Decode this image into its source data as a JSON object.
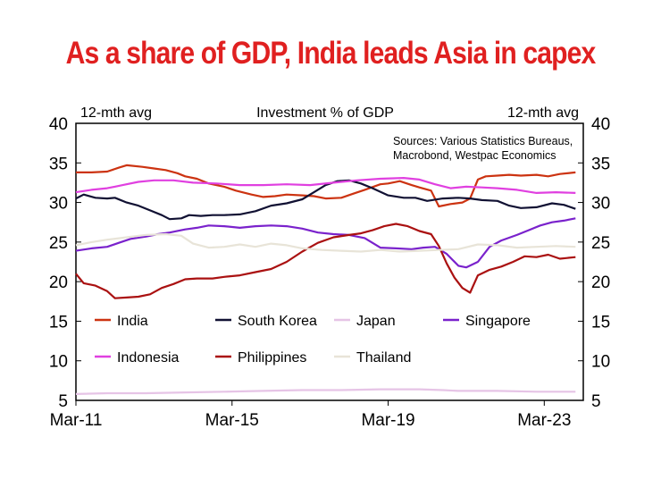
{
  "headline": "As a share of GDP, India leads Asia in capex",
  "chart_data": {
    "type": "line",
    "title": "Investment % of GDP",
    "left_axis_label": "12-mth avg",
    "right_axis_label": "12-mth avg",
    "sources_line1": "Sources: Various Statistics Bureaus,",
    "sources_line2": "Macrobond, Westpac Economics",
    "ylim": [
      5,
      40
    ],
    "yticks": [
      5,
      10,
      15,
      20,
      25,
      30,
      35,
      40
    ],
    "xlim": [
      2011.2,
      2024.2
    ],
    "xticks": [
      {
        "label": "Mar-11",
        "value": 2011.2
      },
      {
        "label": "Mar-15",
        "value": 2015.2
      },
      {
        "label": "Mar-19",
        "value": 2019.2
      },
      {
        "label": "Mar-23",
        "value": 2023.2
      }
    ],
    "grid": false,
    "legend": "inside-bottom",
    "series": [
      {
        "name": "India",
        "color": "#cc3311",
        "points": [
          [
            2011.2,
            33.8
          ],
          [
            2011.6,
            33.8
          ],
          [
            2012.0,
            33.9
          ],
          [
            2012.3,
            34.4
          ],
          [
            2012.5,
            34.7
          ],
          [
            2012.9,
            34.5
          ],
          [
            2013.2,
            34.3
          ],
          [
            2013.5,
            34.1
          ],
          [
            2013.8,
            33.7
          ],
          [
            2014.0,
            33.3
          ],
          [
            2014.3,
            33.0
          ],
          [
            2014.6,
            32.4
          ],
          [
            2015.0,
            32.0
          ],
          [
            2015.3,
            31.5
          ],
          [
            2015.7,
            31.0
          ],
          [
            2016.0,
            30.7
          ],
          [
            2016.3,
            30.8
          ],
          [
            2016.6,
            31.0
          ],
          [
            2017.0,
            30.9
          ],
          [
            2017.3,
            30.8
          ],
          [
            2017.6,
            30.5
          ],
          [
            2018.0,
            30.6
          ],
          [
            2018.3,
            31.1
          ],
          [
            2018.6,
            31.6
          ],
          [
            2019.0,
            32.3
          ],
          [
            2019.2,
            32.4
          ],
          [
            2019.5,
            32.7
          ],
          [
            2019.8,
            32.2
          ],
          [
            2020.0,
            31.9
          ],
          [
            2020.3,
            31.5
          ],
          [
            2020.5,
            29.5
          ],
          [
            2020.8,
            29.8
          ],
          [
            2021.1,
            30.0
          ],
          [
            2021.3,
            30.5
          ],
          [
            2021.5,
            32.9
          ],
          [
            2021.7,
            33.3
          ],
          [
            2022.0,
            33.4
          ],
          [
            2022.3,
            33.5
          ],
          [
            2022.6,
            33.4
          ],
          [
            2023.0,
            33.5
          ],
          [
            2023.3,
            33.3
          ],
          [
            2023.6,
            33.6
          ],
          [
            2024.0,
            33.8
          ]
        ]
      },
      {
        "name": "South Korea",
        "color": "#111133",
        "points": [
          [
            2011.2,
            30.5
          ],
          [
            2011.4,
            31.0
          ],
          [
            2011.7,
            30.6
          ],
          [
            2012.0,
            30.5
          ],
          [
            2012.2,
            30.6
          ],
          [
            2012.5,
            30.0
          ],
          [
            2012.8,
            29.6
          ],
          [
            2013.1,
            29.0
          ],
          [
            2013.4,
            28.4
          ],
          [
            2013.6,
            27.9
          ],
          [
            2013.9,
            28.0
          ],
          [
            2014.1,
            28.4
          ],
          [
            2014.4,
            28.3
          ],
          [
            2014.7,
            28.4
          ],
          [
            2015.0,
            28.4
          ],
          [
            2015.4,
            28.5
          ],
          [
            2015.8,
            28.9
          ],
          [
            2016.2,
            29.6
          ],
          [
            2016.6,
            29.9
          ],
          [
            2017.0,
            30.4
          ],
          [
            2017.3,
            31.3
          ],
          [
            2017.6,
            32.2
          ],
          [
            2017.9,
            32.7
          ],
          [
            2018.2,
            32.8
          ],
          [
            2018.5,
            32.4
          ],
          [
            2018.8,
            31.8
          ],
          [
            2019.2,
            30.9
          ],
          [
            2019.6,
            30.6
          ],
          [
            2019.9,
            30.6
          ],
          [
            2020.2,
            30.2
          ],
          [
            2020.6,
            30.5
          ],
          [
            2021.0,
            30.6
          ],
          [
            2021.3,
            30.5
          ],
          [
            2021.6,
            30.3
          ],
          [
            2022.0,
            30.2
          ],
          [
            2022.3,
            29.6
          ],
          [
            2022.6,
            29.3
          ],
          [
            2023.0,
            29.4
          ],
          [
            2023.4,
            29.9
          ],
          [
            2023.7,
            29.7
          ],
          [
            2024.0,
            29.2
          ]
        ]
      },
      {
        "name": "Japan",
        "color": "#e6c4e6",
        "points": [
          [
            2011.2,
            5.8
          ],
          [
            2012.0,
            5.9
          ],
          [
            2013.0,
            5.9
          ],
          [
            2014.0,
            6.0
          ],
          [
            2015.0,
            6.1
          ],
          [
            2016.0,
            6.2
          ],
          [
            2017.0,
            6.3
          ],
          [
            2018.0,
            6.3
          ],
          [
            2019.0,
            6.4
          ],
          [
            2020.0,
            6.4
          ],
          [
            2020.6,
            6.3
          ],
          [
            2021.0,
            6.2
          ],
          [
            2022.0,
            6.2
          ],
          [
            2023.0,
            6.1
          ],
          [
            2024.0,
            6.1
          ]
        ]
      },
      {
        "name": "Singapore",
        "color": "#7a22cc",
        "points": [
          [
            2011.2,
            23.9
          ],
          [
            2011.6,
            24.2
          ],
          [
            2012.0,
            24.4
          ],
          [
            2012.3,
            24.9
          ],
          [
            2012.6,
            25.4
          ],
          [
            2013.0,
            25.7
          ],
          [
            2013.3,
            26.0
          ],
          [
            2013.6,
            26.2
          ],
          [
            2014.0,
            26.6
          ],
          [
            2014.3,
            26.8
          ],
          [
            2014.6,
            27.1
          ],
          [
            2015.0,
            27.0
          ],
          [
            2015.4,
            26.8
          ],
          [
            2015.8,
            27.0
          ],
          [
            2016.2,
            27.1
          ],
          [
            2016.6,
            27.0
          ],
          [
            2017.0,
            26.7
          ],
          [
            2017.4,
            26.2
          ],
          [
            2017.8,
            26.0
          ],
          [
            2018.2,
            25.9
          ],
          [
            2018.6,
            25.5
          ],
          [
            2019.0,
            24.3
          ],
          [
            2019.4,
            24.2
          ],
          [
            2019.8,
            24.1
          ],
          [
            2020.1,
            24.3
          ],
          [
            2020.4,
            24.4
          ],
          [
            2020.7,
            23.5
          ],
          [
            2021.0,
            22.0
          ],
          [
            2021.2,
            21.8
          ],
          [
            2021.5,
            22.5
          ],
          [
            2021.8,
            24.4
          ],
          [
            2022.1,
            25.2
          ],
          [
            2022.5,
            25.9
          ],
          [
            2022.8,
            26.5
          ],
          [
            2023.1,
            27.1
          ],
          [
            2023.4,
            27.5
          ],
          [
            2023.7,
            27.7
          ],
          [
            2024.0,
            28.0
          ]
        ]
      },
      {
        "name": "Indonesia",
        "color": "#e040e0",
        "points": [
          [
            2011.2,
            31.3
          ],
          [
            2011.6,
            31.6
          ],
          [
            2012.0,
            31.8
          ],
          [
            2012.4,
            32.2
          ],
          [
            2012.8,
            32.6
          ],
          [
            2013.2,
            32.8
          ],
          [
            2013.7,
            32.8
          ],
          [
            2014.2,
            32.5
          ],
          [
            2014.8,
            32.4
          ],
          [
            2015.4,
            32.2
          ],
          [
            2016.0,
            32.2
          ],
          [
            2016.6,
            32.3
          ],
          [
            2017.2,
            32.2
          ],
          [
            2017.8,
            32.5
          ],
          [
            2018.4,
            32.8
          ],
          [
            2019.0,
            33.0
          ],
          [
            2019.6,
            33.1
          ],
          [
            2020.0,
            32.9
          ],
          [
            2020.4,
            32.3
          ],
          [
            2020.8,
            31.8
          ],
          [
            2021.2,
            32.0
          ],
          [
            2021.6,
            31.9
          ],
          [
            2022.0,
            31.8
          ],
          [
            2022.5,
            31.6
          ],
          [
            2023.0,
            31.2
          ],
          [
            2023.5,
            31.3
          ],
          [
            2024.0,
            31.2
          ]
        ]
      },
      {
        "name": "Philippines",
        "color": "#aa1111",
        "points": [
          [
            2011.2,
            21.0
          ],
          [
            2011.4,
            19.8
          ],
          [
            2011.7,
            19.5
          ],
          [
            2012.0,
            18.8
          ],
          [
            2012.2,
            17.9
          ],
          [
            2012.5,
            18.0
          ],
          [
            2012.8,
            18.1
          ],
          [
            2013.1,
            18.4
          ],
          [
            2013.4,
            19.2
          ],
          [
            2013.7,
            19.7
          ],
          [
            2014.0,
            20.3
          ],
          [
            2014.3,
            20.4
          ],
          [
            2014.7,
            20.4
          ],
          [
            2015.0,
            20.6
          ],
          [
            2015.4,
            20.8
          ],
          [
            2015.8,
            21.2
          ],
          [
            2016.2,
            21.6
          ],
          [
            2016.6,
            22.5
          ],
          [
            2017.0,
            23.8
          ],
          [
            2017.4,
            24.9
          ],
          [
            2017.8,
            25.6
          ],
          [
            2018.2,
            25.9
          ],
          [
            2018.5,
            26.1
          ],
          [
            2018.8,
            26.5
          ],
          [
            2019.1,
            27.0
          ],
          [
            2019.4,
            27.3
          ],
          [
            2019.7,
            27.0
          ],
          [
            2020.0,
            26.4
          ],
          [
            2020.3,
            26.0
          ],
          [
            2020.5,
            24.5
          ],
          [
            2020.7,
            22.3
          ],
          [
            2020.9,
            20.5
          ],
          [
            2021.1,
            19.2
          ],
          [
            2021.3,
            18.6
          ],
          [
            2021.5,
            20.8
          ],
          [
            2021.8,
            21.5
          ],
          [
            2022.1,
            21.9
          ],
          [
            2022.4,
            22.5
          ],
          [
            2022.7,
            23.2
          ],
          [
            2023.0,
            23.1
          ],
          [
            2023.3,
            23.4
          ],
          [
            2023.6,
            22.9
          ],
          [
            2024.0,
            23.1
          ]
        ]
      },
      {
        "name": "Thailand",
        "color": "#e8e4d8",
        "points": [
          [
            2011.2,
            24.6
          ],
          [
            2011.6,
            25.0
          ],
          [
            2012.0,
            25.3
          ],
          [
            2012.5,
            25.6
          ],
          [
            2013.0,
            25.9
          ],
          [
            2013.5,
            26.0
          ],
          [
            2013.9,
            25.8
          ],
          [
            2014.2,
            24.8
          ],
          [
            2014.6,
            24.3
          ],
          [
            2015.0,
            24.4
          ],
          [
            2015.4,
            24.7
          ],
          [
            2015.8,
            24.4
          ],
          [
            2016.2,
            24.8
          ],
          [
            2016.6,
            24.6
          ],
          [
            2017.0,
            24.2
          ],
          [
            2017.5,
            24.0
          ],
          [
            2018.0,
            23.9
          ],
          [
            2018.5,
            23.8
          ],
          [
            2019.0,
            24.0
          ],
          [
            2019.5,
            23.8
          ],
          [
            2020.0,
            23.9
          ],
          [
            2020.5,
            24.0
          ],
          [
            2021.0,
            24.1
          ],
          [
            2021.5,
            24.7
          ],
          [
            2022.0,
            24.6
          ],
          [
            2022.5,
            24.3
          ],
          [
            2023.0,
            24.4
          ],
          [
            2023.5,
            24.5
          ],
          [
            2024.0,
            24.4
          ]
        ]
      }
    ]
  }
}
